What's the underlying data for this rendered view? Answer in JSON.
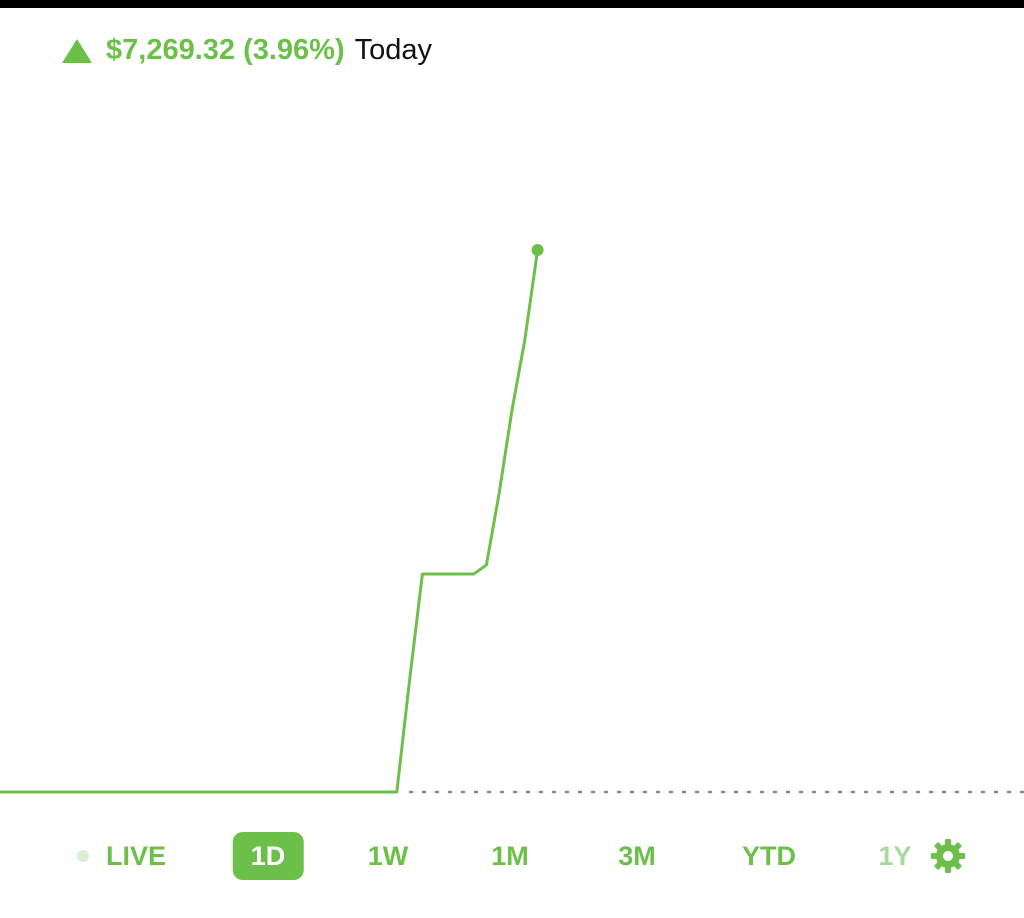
{
  "header": {
    "change": "$7,269.32 (3.96%)",
    "period": "Today"
  },
  "chart_data": {
    "type": "line",
    "color": "#6cc04a",
    "values": [
      0,
      0,
      0,
      0,
      0,
      0,
      0,
      0,
      0,
      0,
      0,
      0,
      0,
      0,
      0,
      0,
      0,
      0,
      0,
      0,
      0,
      0,
      0,
      0,
      0,
      0,
      0,
      0,
      0,
      0,
      0,
      0,
      1502,
      2923,
      2923,
      2923,
      2923,
      2923,
      3044,
      4010,
      5123,
      6061,
      7269,
      null,
      null,
      null,
      null,
      null,
      null,
      null,
      null,
      null,
      null,
      null,
      null,
      null,
      null,
      null,
      null,
      null,
      null,
      null,
      null,
      null,
      null,
      null,
      null,
      null,
      null,
      null,
      null,
      null,
      null,
      null,
      null,
      null,
      null,
      null,
      null,
      null,
      null
    ],
    "end_marker": true
  },
  "tabs": {
    "items": [
      "LIVE",
      "1D",
      "1W",
      "1M",
      "3M",
      "YTD",
      "1Y"
    ],
    "active": 1
  }
}
